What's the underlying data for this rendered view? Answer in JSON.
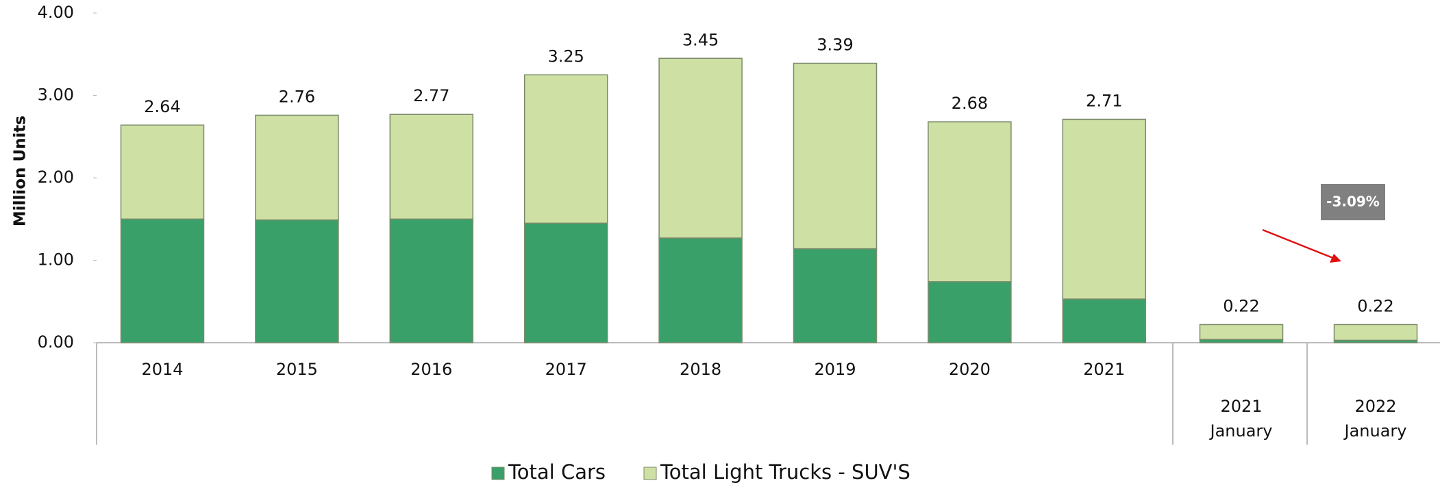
{
  "chart_data": {
    "type": "bar",
    "stacked": true,
    "y_label": "Million Units",
    "categories": [
      "2014",
      "2015",
      "2016",
      "2017",
      "2018",
      "2019",
      "2020",
      "2021",
      [
        "2021",
        "January"
      ],
      [
        "2022",
        "January"
      ]
    ],
    "series": [
      {
        "name": "Total Cars",
        "color": "#3aa06a",
        "values": [
          1.5,
          1.49,
          1.5,
          1.45,
          1.27,
          1.14,
          0.74,
          0.53,
          0.04,
          0.03
        ]
      },
      {
        "name": "Total Light Trucks - SUV'S",
        "color": "#cfe0a4",
        "values": [
          1.14,
          1.27,
          1.27,
          1.8,
          2.18,
          2.25,
          1.94,
          2.18,
          0.18,
          0.19
        ]
      }
    ],
    "totals": [
      2.64,
      2.76,
      2.77,
      3.25,
      3.45,
      3.39,
      2.68,
      2.71,
      0.22,
      0.22
    ],
    "ylim": [
      0,
      4
    ],
    "yticks": [
      {
        "value": 0,
        "label": "0.00"
      },
      {
        "value": 1,
        "label": "1.00"
      },
      {
        "value": 2,
        "label": "2.00"
      },
      {
        "value": 3,
        "label": "3.00"
      },
      {
        "value": 4,
        "label": "4.00"
      }
    ],
    "annotation": "-3.09%",
    "legend": "bottom"
  }
}
